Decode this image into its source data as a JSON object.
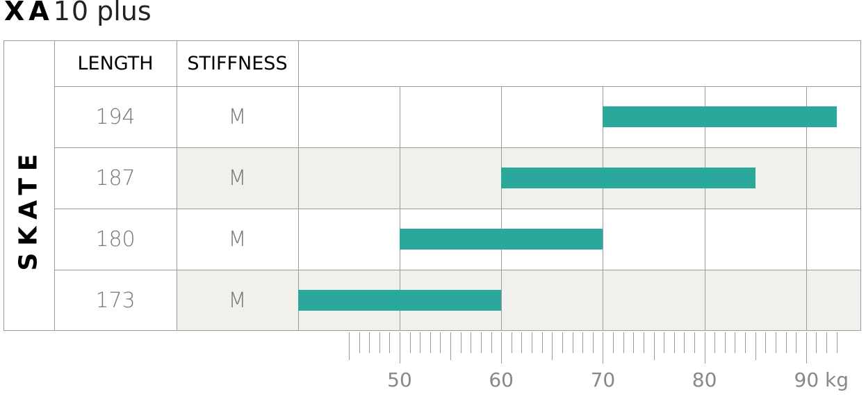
{
  "title": {
    "brand": "XA",
    "model": "10",
    "variant": "plus"
  },
  "chart_data": {
    "type": "bar",
    "category_label": "SKATE",
    "columns": [
      "LENGTH",
      "STIFFNESS"
    ],
    "rows": [
      {
        "length": "194",
        "stiffness": "M",
        "range": [
          70,
          93
        ]
      },
      {
        "length": "187",
        "stiffness": "M",
        "range": [
          60,
          85
        ]
      },
      {
        "length": "180",
        "stiffness": "M",
        "range": [
          50,
          70
        ]
      },
      {
        "length": "173",
        "stiffness": "M",
        "range": [
          40,
          60
        ]
      }
    ],
    "x_axis": {
      "unit": "kg",
      "ticks": [
        50,
        60,
        70,
        80,
        90
      ],
      "tick_labels": [
        "50",
        "60",
        "70",
        "80",
        "90 kg"
      ],
      "range": [
        40,
        95
      ]
    },
    "bar_color": "#2aa89b",
    "alt_row_color": "#f2f0ed",
    "grid": true
  }
}
